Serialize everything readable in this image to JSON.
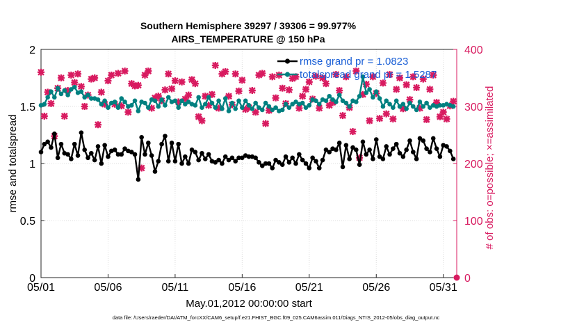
{
  "chart_data": {
    "type": "line",
    "title": "Southern Hemisphere 39297 / 39306 = 99.977%",
    "subtitle": "AIRS_TEMPERATURE @ 150 hPa",
    "xlabel": "May.01,2012 00:00:00 start",
    "ylabel": "rmse and totalspread",
    "ylabel_right": "# of obs: o=possible; ×=assimilated",
    "footer": "data file: /Users/raeder/DAI/ATM_forcXX/CAM6_setup/f.e21.FHIST_BGC.f09_025.CAM6assim.011/Diags_NTrS_2012-05/obs_diag_output.nc",
    "x_tick_labels": [
      "05/01",
      "05/06",
      "05/11",
      "05/16",
      "05/21",
      "05/26",
      "05/31"
    ],
    "x_ticks": [
      1,
      6,
      11,
      16,
      21,
      26,
      31
    ],
    "xlim": [
      1,
      32
    ],
    "ylim": [
      0,
      2
    ],
    "y_ticks": [
      0,
      0.5,
      1,
      1.5,
      2
    ],
    "y_tick_labels": [
      "0",
      "0.5",
      "1",
      "1.5",
      "2"
    ],
    "ylim_right": [
      0,
      400
    ],
    "y_ticks_right": [
      0,
      100,
      200,
      300,
      400
    ],
    "y_tick_labels_right": [
      "0",
      "100",
      "200",
      "300",
      "400"
    ],
    "grid": true,
    "legend_position": "top-right",
    "colors": {
      "rmse": "#000000",
      "spread": "#008080",
      "obs": "#d81b60",
      "right_axis": "#d81b60"
    },
    "series": [
      {
        "name": "rmse grand pr = 1.0823",
        "color": "#000000",
        "x": [
          1.0,
          1.25,
          1.5,
          1.75,
          2.0,
          2.25,
          2.5,
          2.75,
          3.0,
          3.25,
          3.5,
          3.75,
          4.0,
          4.25,
          4.5,
          4.75,
          5.0,
          5.25,
          5.5,
          5.75,
          6.0,
          6.25,
          6.5,
          6.75,
          7.0,
          7.25,
          7.5,
          7.75,
          8.0,
          8.25,
          8.5,
          8.75,
          9.0,
          9.25,
          9.5,
          9.75,
          10.0,
          10.25,
          10.5,
          10.75,
          11.0,
          11.25,
          11.5,
          11.75,
          12.0,
          12.25,
          12.5,
          12.75,
          13.0,
          13.25,
          13.5,
          13.75,
          14.0,
          14.25,
          14.5,
          14.75,
          15.0,
          15.25,
          15.5,
          15.75,
          16.0,
          16.25,
          16.5,
          16.75,
          17.0,
          17.25,
          17.5,
          17.75,
          18.0,
          18.25,
          18.5,
          18.75,
          19.0,
          19.25,
          19.5,
          19.75,
          20.0,
          20.25,
          20.5,
          20.75,
          21.0,
          21.25,
          21.5,
          21.75,
          22.0,
          22.25,
          22.5,
          22.75,
          23.0,
          23.25,
          23.5,
          23.75,
          24.0,
          24.25,
          24.5,
          24.75,
          25.0,
          25.25,
          25.5,
          25.75,
          26.0,
          26.25,
          26.5,
          26.75,
          27.0,
          27.25,
          27.5,
          27.75,
          28.0,
          28.25,
          28.5,
          28.75,
          29.0,
          29.25,
          29.5,
          29.75,
          30.0,
          30.25,
          30.5,
          30.75,
          31.0,
          31.25,
          31.5,
          31.75
        ],
        "values": [
          1.1,
          1.17,
          1.19,
          1.14,
          1.26,
          1.05,
          1.17,
          1.09,
          1.08,
          1.04,
          1.17,
          1.07,
          1.27,
          1.12,
          1.05,
          1.09,
          1.03,
          1.15,
          1.0,
          1.16,
          1.06,
          1.11,
          1.12,
          1.08,
          1.08,
          1.13,
          1.11,
          1.1,
          1.08,
          0.86,
          1.23,
          1.08,
          1.18,
          1.07,
          0.93,
          1.02,
          1.17,
          1.24,
          1.02,
          1.18,
          1.02,
          1.17,
          1.0,
          1.06,
          1.0,
          1.12,
          1.1,
          1.03,
          1.09,
          1.04,
          1.08,
          1.02,
          1.01,
          1.03,
          1.0,
          1.06,
          1.03,
          1.05,
          1.02,
          1.05,
          1.05,
          1.07,
          1.06,
          1.06,
          1.05,
          1.01,
          0.98,
          1.0,
          1.0,
          0.96,
          1.03,
          1.01,
          0.99,
          1.06,
          1.01,
          1.05,
          1.0,
          1.08,
          1.03,
          1.0,
          0.96,
          1.05,
          1.02,
          0.96,
          1.03,
          1.12,
          1.1,
          1.13,
          1.12,
          1.18,
          0.97,
          1.16,
          1.04,
          1.14,
          1.12,
          0.99,
          1.19,
          1.08,
          1.12,
          1.04,
          1.21,
          1.06,
          1.04,
          1.15,
          1.08,
          1.13,
          1.17,
          1.09,
          1.06,
          1.12,
          1.2,
          1.1,
          1.04,
          1.22,
          1.2,
          1.13,
          1.1,
          1.22,
          1.13,
          1.06,
          1.16,
          1.15,
          1.11,
          1.04
        ]
      },
      {
        "name": "totalspread grand pr = 1.5287",
        "color": "#008080",
        "x": [
          1.0,
          1.25,
          1.5,
          1.75,
          2.0,
          2.25,
          2.5,
          2.75,
          3.0,
          3.25,
          3.5,
          3.75,
          4.0,
          4.25,
          4.5,
          4.75,
          5.0,
          5.25,
          5.5,
          5.75,
          6.0,
          6.25,
          6.5,
          6.75,
          7.0,
          7.25,
          7.5,
          7.75,
          8.0,
          8.25,
          8.5,
          8.75,
          9.0,
          9.25,
          9.5,
          9.75,
          10.0,
          10.25,
          10.5,
          10.75,
          11.0,
          11.25,
          11.5,
          11.75,
          12.0,
          12.25,
          12.5,
          12.75,
          13.0,
          13.25,
          13.5,
          13.75,
          14.0,
          14.25,
          14.5,
          14.75,
          15.0,
          15.25,
          15.5,
          15.75,
          16.0,
          16.25,
          16.5,
          16.75,
          17.0,
          17.25,
          17.5,
          17.75,
          18.0,
          18.25,
          18.5,
          18.75,
          19.0,
          19.25,
          19.5,
          19.75,
          20.0,
          20.25,
          20.5,
          20.75,
          21.0,
          21.25,
          21.5,
          21.75,
          22.0,
          22.25,
          22.5,
          22.75,
          23.0,
          23.25,
          23.5,
          23.75,
          24.0,
          24.25,
          24.5,
          24.75,
          25.0,
          25.25,
          25.5,
          25.75,
          26.0,
          26.25,
          26.5,
          26.75,
          27.0,
          27.25,
          27.5,
          27.75,
          28.0,
          28.25,
          28.5,
          28.75,
          29.0,
          29.25,
          29.5,
          29.75,
          30.0,
          30.25,
          30.5,
          30.75,
          31.0,
          31.25,
          31.5,
          31.75
        ],
        "values": [
          1.51,
          1.52,
          1.58,
          1.63,
          1.58,
          1.66,
          1.61,
          1.64,
          1.6,
          1.65,
          1.67,
          1.62,
          1.63,
          1.58,
          1.6,
          1.57,
          1.57,
          1.56,
          1.52,
          1.55,
          1.49,
          1.53,
          1.54,
          1.49,
          1.57,
          1.54,
          1.5,
          1.51,
          1.55,
          1.46,
          1.54,
          1.53,
          1.49,
          1.56,
          1.55,
          1.5,
          1.56,
          1.51,
          1.58,
          1.54,
          1.55,
          1.49,
          1.55,
          1.52,
          1.54,
          1.52,
          1.51,
          1.58,
          1.49,
          1.52,
          1.58,
          1.53,
          1.49,
          1.55,
          1.48,
          1.57,
          1.46,
          1.53,
          1.48,
          1.55,
          1.49,
          1.55,
          1.51,
          1.48,
          1.53,
          1.49,
          1.47,
          1.53,
          1.5,
          1.47,
          1.49,
          1.46,
          1.47,
          1.52,
          1.49,
          1.52,
          1.54,
          1.52,
          1.53,
          1.49,
          1.51,
          1.56,
          1.55,
          1.52,
          1.56,
          1.55,
          1.59,
          1.56,
          1.54,
          1.6,
          1.55,
          1.53,
          1.5,
          1.55,
          1.54,
          1.59,
          1.76,
          1.62,
          1.65,
          1.58,
          1.63,
          1.57,
          1.5,
          1.55,
          1.52,
          1.49,
          1.55,
          1.5,
          1.52,
          1.48,
          1.53,
          1.5,
          1.47,
          1.54,
          1.5,
          1.53,
          1.49,
          1.51,
          1.5,
          1.51,
          1.51,
          1.52,
          1.51,
          1.5
        ]
      },
      {
        "name": "# of obs",
        "axis": "right",
        "color": "#d81b60",
        "x": [
          1.0,
          1.25,
          1.5,
          1.75,
          2.0,
          2.25,
          2.5,
          2.75,
          3.0,
          3.25,
          3.5,
          3.75,
          4.0,
          4.25,
          4.5,
          4.75,
          5.0,
          5.25,
          5.5,
          5.75,
          6.0,
          6.25,
          6.5,
          6.75,
          7.0,
          7.25,
          7.5,
          7.75,
          8.0,
          8.25,
          8.5,
          8.75,
          9.0,
          9.25,
          9.5,
          9.75,
          10.0,
          10.25,
          10.5,
          10.75,
          11.0,
          11.25,
          11.5,
          11.75,
          12.0,
          12.25,
          12.5,
          12.75,
          13.0,
          13.25,
          13.5,
          13.75,
          14.0,
          14.25,
          14.5,
          14.75,
          15.0,
          15.25,
          15.5,
          15.75,
          16.0,
          16.25,
          16.5,
          16.75,
          17.0,
          17.25,
          17.5,
          17.75,
          18.0,
          18.25,
          18.5,
          18.75,
          19.0,
          19.25,
          19.5,
          19.75,
          20.0,
          20.25,
          20.5,
          20.75,
          21.0,
          21.25,
          21.5,
          21.75,
          22.0,
          22.25,
          22.5,
          22.75,
          23.0,
          23.25,
          23.5,
          23.75,
          24.0,
          24.25,
          24.5,
          24.75,
          25.0,
          25.25,
          25.5,
          25.75,
          26.0,
          26.25,
          26.5,
          26.75,
          27.0,
          27.25,
          27.5,
          27.75,
          28.0,
          28.25,
          28.5,
          28.75,
          29.0,
          29.25,
          29.5,
          29.75,
          30.0,
          30.25,
          30.5,
          30.75,
          31.0,
          31.25,
          31.5,
          31.75
        ],
        "values": [
          360,
          283,
          325,
          305,
          248,
          332,
          350,
          283,
          328,
          355,
          342,
          357,
          335,
          300,
          320,
          348,
          350,
          268,
          325,
          304,
          345,
          355,
          304,
          358,
          301,
          362,
          290,
          340,
          336,
          337,
          192,
          355,
          362,
          297,
          315,
          318,
          310,
          329,
          357,
          331,
          345,
          308,
          343,
          313,
          320,
          347,
          340,
          282,
          275,
          318,
          302,
          321,
          372,
          297,
          357,
          361,
          318,
          303,
          357,
          327,
          346,
          295,
          298,
          328,
          290,
          355,
          358,
          270,
          293,
          352,
          315,
          355,
          332,
          305,
          329,
          349,
          352,
          297,
          318,
          330,
          343,
          313,
          353,
          297,
          350,
          340,
          302,
          307,
          356,
          328,
          284,
          352,
          298,
          256,
          362,
          210,
          321,
          339,
          275,
          352,
          323,
          279,
          341,
          287,
          356,
          278,
          330,
          350,
          296,
          338,
          312,
          352,
          333,
          297,
          348,
          277,
          330,
          355,
          307,
          282,
          290,
          278,
          301,
          309
        ]
      },
      {
        "name": "# of obs possible",
        "axis": "right",
        "x": [
          32
        ],
        "values": [
          0
        ]
      }
    ]
  },
  "legend": [
    {
      "label": "rmse grand pr = 1.0823",
      "color": "#000000"
    },
    {
      "label": "totalspread grand pr = 1.5287",
      "color": "#008080"
    }
  ]
}
